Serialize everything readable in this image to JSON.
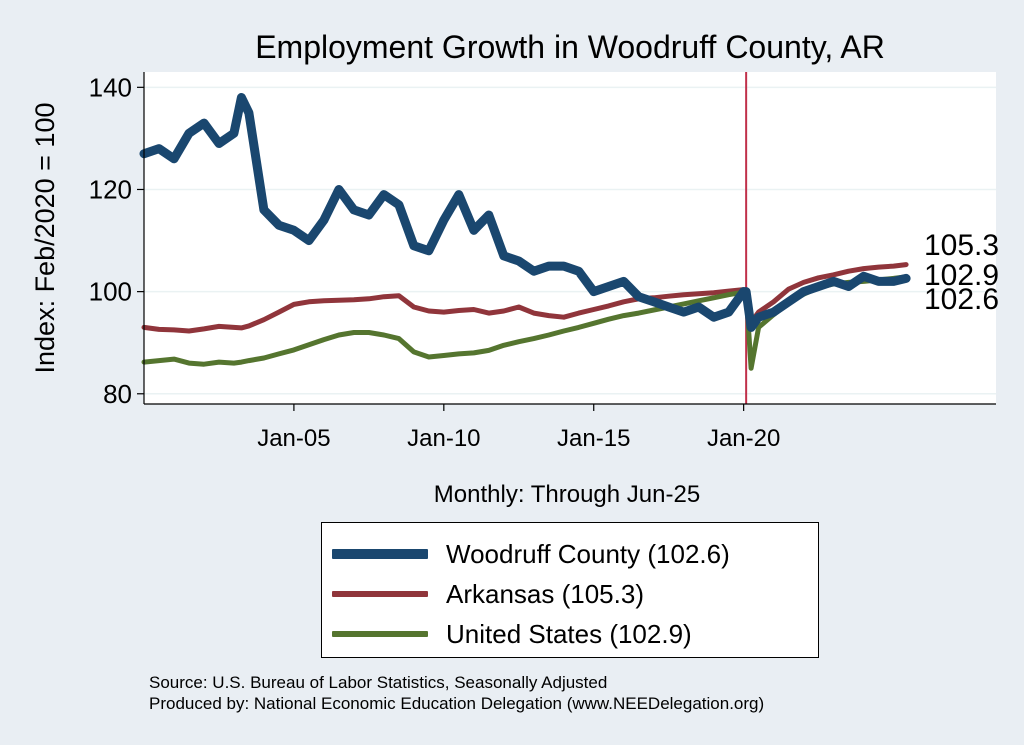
{
  "chart_data": {
    "type": "line",
    "title": "Employment Growth in Woodruff  County, AR",
    "ylabel": "Index: Feb/2020 = 100",
    "xlabel": "Monthly: Through Jun-25",
    "x_ticks": [
      "Jan-05",
      "Jan-10",
      "Jan-15",
      "Jan-20"
    ],
    "y_ticks": [
      80,
      100,
      120,
      140
    ],
    "ylim": [
      78,
      143
    ],
    "xlim": [
      "2000-01",
      "2028-06"
    ],
    "vertical_line": "2020-02",
    "vertical_line_color": "#c0304a",
    "x": [
      "2000-01",
      "2000-07",
      "2001-01",
      "2001-07",
      "2002-01",
      "2002-07",
      "2003-01",
      "2003-04",
      "2003-07",
      "2004-01",
      "2004-07",
      "2005-01",
      "2005-07",
      "2006-01",
      "2006-07",
      "2007-01",
      "2007-07",
      "2008-01",
      "2008-07",
      "2009-01",
      "2009-07",
      "2010-01",
      "2010-07",
      "2011-01",
      "2011-07",
      "2012-01",
      "2012-07",
      "2013-01",
      "2013-07",
      "2014-01",
      "2014-07",
      "2015-01",
      "2015-07",
      "2016-01",
      "2016-07",
      "2017-01",
      "2017-07",
      "2018-01",
      "2018-07",
      "2019-01",
      "2019-07",
      "2020-01",
      "2020-02",
      "2020-04",
      "2020-07",
      "2021-01",
      "2021-07",
      "2022-01",
      "2022-07",
      "2023-01",
      "2023-07",
      "2024-01",
      "2024-07",
      "2025-01",
      "2025-06"
    ],
    "series": [
      {
        "name": "Woodruff  County (102.6)",
        "color": "#1a476f",
        "width": 9,
        "values": [
          127,
          128,
          126,
          131,
          133,
          129,
          131,
          138,
          135,
          116,
          113,
          112,
          110,
          114,
          120,
          116,
          115,
          119,
          117,
          109,
          108,
          114,
          119,
          112,
          115,
          107,
          106,
          104,
          105,
          105,
          104,
          100,
          101,
          102,
          99,
          98,
          97,
          96,
          97,
          95,
          96,
          100,
          100,
          93,
          95,
          96,
          98,
          100,
          101,
          102,
          101,
          103,
          102,
          102,
          102.6
        ]
      },
      {
        "name": "Arkansas (105.3)",
        "color": "#90353b",
        "width": 5,
        "values": [
          93,
          92.6,
          92.5,
          92.3,
          92.7,
          93.2,
          93.0,
          92.9,
          93.3,
          94.5,
          96.0,
          97.5,
          98.0,
          98.2,
          98.3,
          98.4,
          98.6,
          99.0,
          99.2,
          97.0,
          96.2,
          96.0,
          96.3,
          96.5,
          95.8,
          96.2,
          97.0,
          95.8,
          95.3,
          95.0,
          95.8,
          96.5,
          97.2,
          98.0,
          98.6,
          98.8,
          99.1,
          99.4,
          99.6,
          99.8,
          100.1,
          100.4,
          100,
          94,
          96,
          98,
          100.5,
          101.8,
          102.7,
          103.3,
          104.0,
          104.5,
          104.8,
          105.0,
          105.3
        ]
      },
      {
        "name": "United States (102.9)",
        "color": "#55752f",
        "width": 5,
        "values": [
          86.2,
          86.5,
          86.8,
          86.0,
          85.8,
          86.2,
          86.0,
          86.2,
          86.5,
          87.0,
          87.8,
          88.6,
          89.6,
          90.6,
          91.5,
          92.0,
          92.0,
          91.5,
          90.8,
          88.2,
          87.2,
          87.5,
          87.8,
          88.0,
          88.5,
          89.5,
          90.2,
          90.8,
          91.5,
          92.3,
          93.0,
          93.8,
          94.6,
          95.3,
          95.8,
          96.4,
          97.0,
          97.6,
          98.2,
          98.8,
          99.4,
          99.9,
          100,
          85,
          93,
          95.5,
          97.8,
          99.5,
          100.8,
          101.5,
          101.8,
          102.0,
          102.3,
          102.6,
          102.9
        ]
      }
    ],
    "end_labels": [
      "105.3",
      "102.9",
      "102.6"
    ]
  },
  "legend": {
    "items": [
      {
        "label": "Woodruff  County (102.6)",
        "color": "#1a476f"
      },
      {
        "label": "Arkansas (105.3)",
        "color": "#90353b"
      },
      {
        "label": "United States (102.9)",
        "color": "#55752f"
      }
    ]
  },
  "source": {
    "line1": "Source: U.S. Bureau of Labor Statistics, Seasonally Adjusted",
    "line2": "Produced by: National Economic Education Delegation (www.NEEDelegation.org)"
  }
}
